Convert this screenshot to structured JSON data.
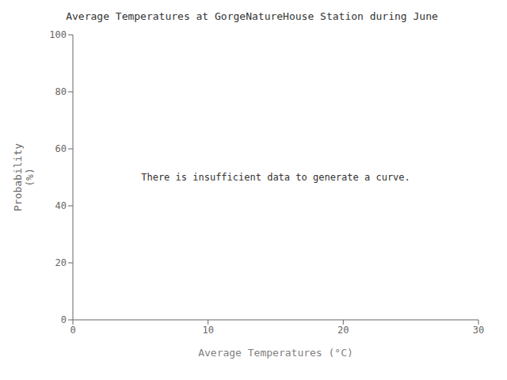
{
  "chart_data": {
    "type": "scatter",
    "title": "Average Temperatures at GorgeNatureHouse Station during June",
    "xlabel": "Average Temperatures (°C)",
    "ylabel": "Probability\n(%)",
    "annotation": "There is insufficient data to generate a curve.",
    "x": [],
    "values": [],
    "xlim": [
      0,
      30
    ],
    "ylim": [
      0,
      100
    ],
    "xticks": [
      0,
      10,
      20,
      30
    ],
    "yticks": [
      0,
      20,
      40,
      60,
      80,
      100
    ],
    "grid": false
  }
}
